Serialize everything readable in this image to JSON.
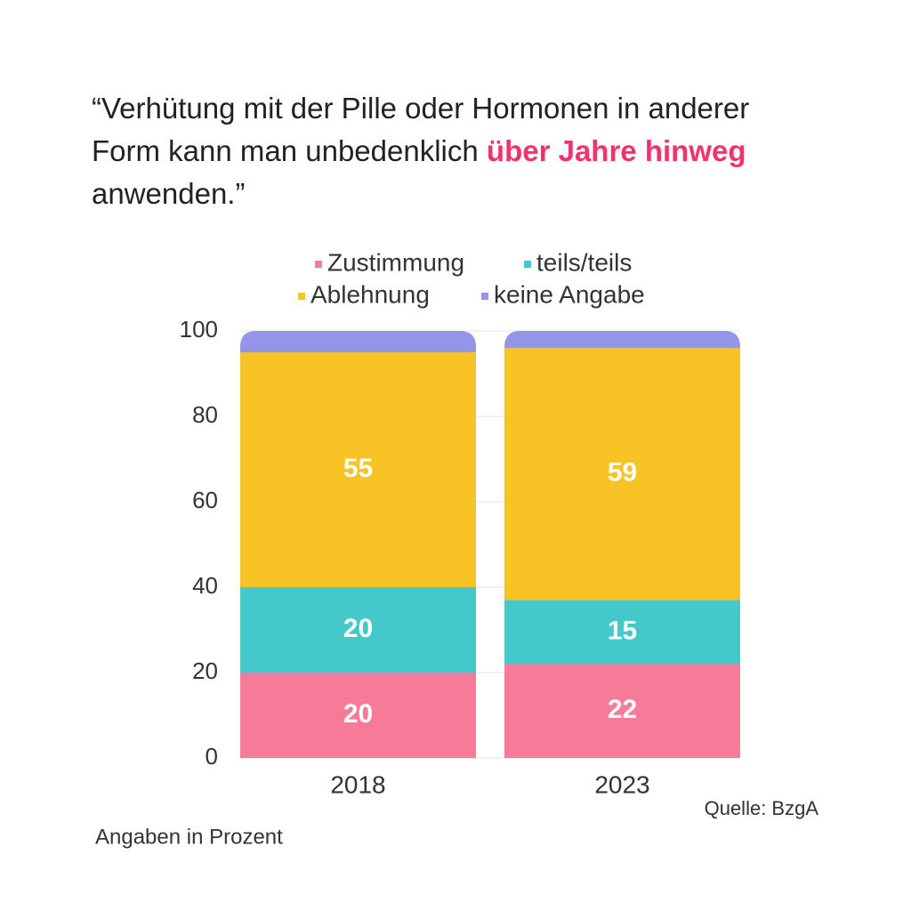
{
  "chart_data": {
    "type": "stacked_bar",
    "title": [
      "“Verhütung mit der Pille oder Hormonen in anderer Form kann man unbedenklich ",
      "über Jahre hinweg",
      " anwenden.”"
    ],
    "highlight_color": "#f0326e",
    "categories": [
      "2018",
      "2023"
    ],
    "series": [
      {
        "name": "Zustimmung",
        "color": "#f77b99",
        "values": [
          20,
          22
        ],
        "data_labels": true
      },
      {
        "name": "teils/teils",
        "color": "#43c9c9",
        "values": [
          20,
          15
        ],
        "data_labels": true
      },
      {
        "name": "Ablehnung",
        "color": "#f7c325",
        "values": [
          55,
          59
        ],
        "data_labels": true
      },
      {
        "name": "keine Angabe",
        "color": "#9494e8",
        "values": [
          5,
          4
        ],
        "data_labels": false
      }
    ],
    "ylim": [
      0,
      100
    ],
    "yticks": [
      0,
      20,
      40,
      60,
      80,
      100
    ],
    "grid": true,
    "legend": "top",
    "source": "Quelle: BzgA",
    "note": "Angaben in Prozent"
  }
}
